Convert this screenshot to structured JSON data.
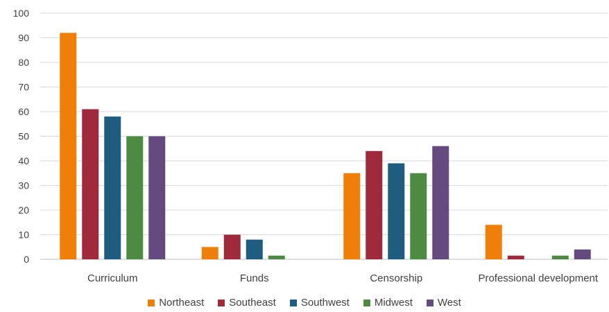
{
  "chart_data": {
    "type": "bar",
    "categories": [
      "Curriculum",
      "Funds",
      "Censorship",
      "Professional development"
    ],
    "series": [
      {
        "name": "Northeast",
        "color": "#f07f09",
        "values": [
          92,
          5,
          35,
          14
        ]
      },
      {
        "name": "Southeast",
        "color": "#9e2a3b",
        "values": [
          61,
          10,
          44,
          1.5
        ]
      },
      {
        "name": "Southwest",
        "color": "#1f5d80",
        "values": [
          58,
          8,
          39,
          0
        ]
      },
      {
        "name": "Midwest",
        "color": "#4d8b43",
        "values": [
          50,
          1.5,
          35,
          1.5
        ]
      },
      {
        "name": "West",
        "color": "#654a80",
        "values": [
          50,
          0,
          46,
          4
        ]
      }
    ],
    "ylim": [
      0,
      100
    ],
    "yticks": [
      "0",
      "10",
      "20",
      "30",
      "40",
      "50",
      "60",
      "70",
      "80",
      "90",
      "100"
    ],
    "grid": true,
    "legend_position": "bottom",
    "title": "",
    "xlabel": "",
    "ylabel": ""
  }
}
